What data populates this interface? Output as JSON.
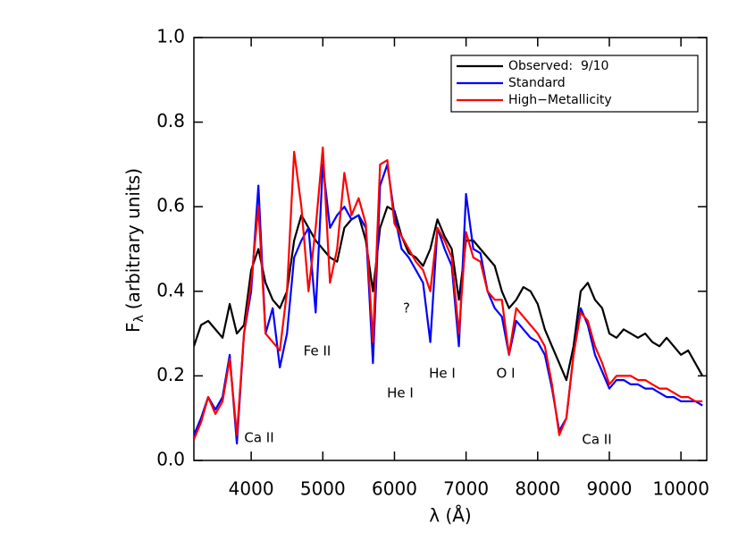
{
  "chart_data": {
    "type": "line",
    "x_label": "λ (Å)",
    "y_label": {
      "main": "F",
      "subscript": "λ",
      "rest": "(arbitrary units)"
    },
    "xlim": [
      3200,
      10360
    ],
    "xticks": [
      4000,
      5000,
      6000,
      7000,
      8000,
      9000,
      10000
    ],
    "ylim": [
      0,
      1
    ],
    "yticks": [
      {
        "value": 0,
        "label": "0.0"
      },
      0.2,
      0.4,
      0.6,
      0.8,
      {
        "value": 1,
        "label": "1.0"
      }
    ],
    "legend": "upper right",
    "annotations": [
      "Ca II",
      "Fe II",
      "He I",
      "?",
      "He I",
      "O I",
      "Ca II"
    ],
    "x": [
      3200,
      3300,
      3400,
      3500,
      3600,
      3700,
      3800,
      3900,
      4000,
      4100,
      4200,
      4300,
      4400,
      4500,
      4600,
      4700,
      4800,
      4900,
      5000,
      5100,
      5200,
      5300,
      5400,
      5500,
      5600,
      5700,
      5800,
      5900,
      6000,
      6100,
      6200,
      6300,
      6400,
      6500,
      6600,
      6700,
      6800,
      6900,
      7000,
      7100,
      7200,
      7300,
      7400,
      7500,
      7600,
      7700,
      7800,
      7900,
      8000,
      8100,
      8200,
      8300,
      8400,
      8500,
      8600,
      8700,
      8800,
      8900,
      9000,
      9100,
      9200,
      9300,
      9400,
      9500,
      9600,
      9700,
      9800,
      9900,
      10000,
      10100,
      10200,
      10300
    ],
    "series": [
      {
        "name": "Observed:  9/10",
        "color": "#000000",
        "values": [
          0.27,
          0.32,
          0.33,
          0.31,
          0.29,
          0.37,
          0.3,
          0.32,
          0.45,
          0.5,
          0.42,
          0.38,
          0.36,
          0.4,
          0.52,
          0.58,
          0.55,
          0.52,
          0.5,
          0.48,
          0.47,
          0.55,
          0.57,
          0.58,
          0.52,
          0.4,
          0.55,
          0.6,
          0.59,
          0.53,
          0.49,
          0.48,
          0.46,
          0.5,
          0.57,
          0.53,
          0.5,
          0.38,
          0.52,
          0.52,
          0.5,
          0.48,
          0.46,
          0.4,
          0.36,
          0.38,
          0.41,
          0.4,
          0.37,
          0.31,
          0.27,
          0.23,
          0.19,
          0.27,
          0.4,
          0.42,
          0.38,
          0.36,
          0.3,
          0.29,
          0.31,
          0.3,
          0.29,
          0.3,
          0.28,
          0.27,
          0.29,
          0.27,
          0.25,
          0.26,
          0.23,
          0.2
        ]
      },
      {
        "name": "Standard",
        "color": "#0000ff",
        "values": [
          0.06,
          0.1,
          0.15,
          0.12,
          0.15,
          0.25,
          0.04,
          0.3,
          0.4,
          0.65,
          0.3,
          0.36,
          0.22,
          0.3,
          0.48,
          0.52,
          0.55,
          0.35,
          0.7,
          0.55,
          0.58,
          0.6,
          0.57,
          0.58,
          0.55,
          0.23,
          0.65,
          0.7,
          0.58,
          0.5,
          0.48,
          0.45,
          0.42,
          0.28,
          0.55,
          0.5,
          0.46,
          0.27,
          0.63,
          0.5,
          0.49,
          0.4,
          0.36,
          0.34,
          0.25,
          0.33,
          0.31,
          0.29,
          0.28,
          0.25,
          0.17,
          0.07,
          0.1,
          0.25,
          0.36,
          0.32,
          0.25,
          0.21,
          0.17,
          0.19,
          0.19,
          0.18,
          0.18,
          0.17,
          0.17,
          0.16,
          0.15,
          0.15,
          0.14,
          0.14,
          0.14,
          0.13
        ]
      },
      {
        "name": "High−Metallicity",
        "color": "#ff0000",
        "values": [
          0.05,
          0.09,
          0.15,
          0.11,
          0.14,
          0.24,
          0.06,
          0.3,
          0.42,
          0.6,
          0.3,
          0.28,
          0.26,
          0.4,
          0.73,
          0.6,
          0.4,
          0.55,
          0.74,
          0.42,
          0.5,
          0.68,
          0.58,
          0.62,
          0.56,
          0.28,
          0.7,
          0.71,
          0.56,
          0.53,
          0.5,
          0.47,
          0.45,
          0.4,
          0.55,
          0.52,
          0.48,
          0.3,
          0.54,
          0.48,
          0.47,
          0.4,
          0.38,
          0.38,
          0.25,
          0.36,
          0.34,
          0.32,
          0.3,
          0.27,
          0.18,
          0.06,
          0.1,
          0.25,
          0.35,
          0.33,
          0.27,
          0.23,
          0.18,
          0.2,
          0.2,
          0.2,
          0.19,
          0.19,
          0.18,
          0.17,
          0.17,
          0.16,
          0.15,
          0.15,
          0.14,
          0.14
        ]
      }
    ]
  }
}
